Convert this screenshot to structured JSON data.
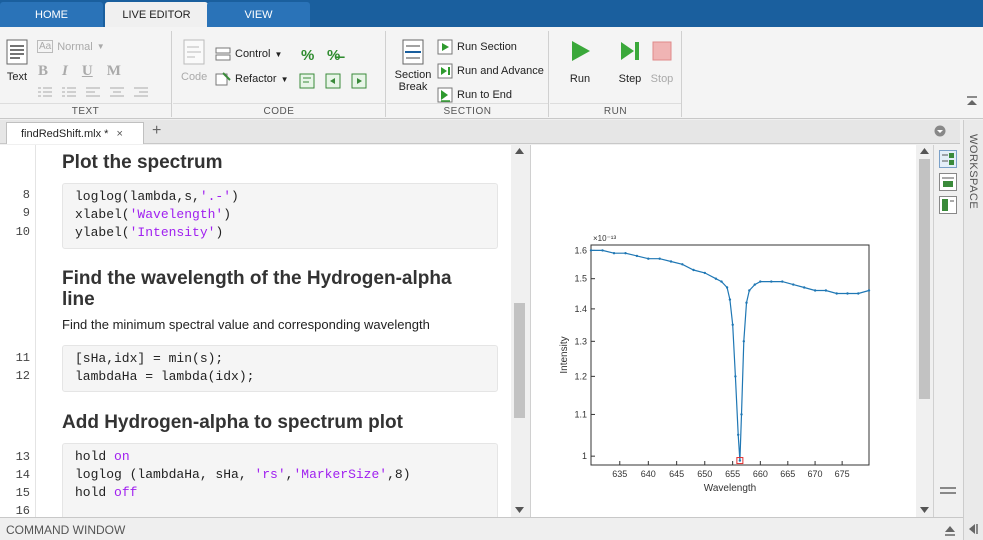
{
  "main_tabs": [
    {
      "label": "HOME"
    },
    {
      "label": "LIVE EDITOR"
    },
    {
      "label": "VIEW"
    }
  ],
  "ribbon": {
    "text_group": {
      "title": "TEXT",
      "text_button": "Text",
      "style_select": "Normal",
      "format_buttons": [
        "B",
        "I",
        "U",
        "M"
      ]
    },
    "code_group": {
      "title": "CODE",
      "code_button": "Code",
      "control_button": "Control",
      "refactor_button": "Refactor"
    },
    "section_group": {
      "title": "SECTION",
      "section_break_line1": "Section",
      "section_break_line2": "Break",
      "run_section": "Run Section",
      "run_and_advance": "Run and Advance",
      "run_to_end": "Run to End"
    },
    "run_group": {
      "title": "RUN",
      "run": "Run",
      "step": "Step",
      "stop": "Stop"
    }
  },
  "document_tab": {
    "label": "findRedShift.mlx *",
    "close": "×",
    "add": "+"
  },
  "editor": {
    "heading1": "Plot the spectrum",
    "code1": {
      "lines": [
        {
          "n": "8",
          "pre": "loglog(lambda,s,",
          "str": "'.-'",
          "post": ")"
        },
        {
          "n": "9",
          "pre": "xlabel(",
          "str": "'Wavelength'",
          "post": ")"
        },
        {
          "n": "10",
          "pre": "ylabel(",
          "str": "'Intensity'",
          "post": ")"
        }
      ]
    },
    "heading2_line1": "Find the wavelength of the Hydrogen-alpha",
    "heading2_line2": "line",
    "paragraph2": "Find the minimum spectral value and corresponding wavelength",
    "code2": {
      "lines": [
        {
          "n": "11",
          "text": "[sHa,idx] = min(s);"
        },
        {
          "n": "12",
          "text": "lambdaHa = lambda(idx);"
        }
      ]
    },
    "heading3": "Add Hydrogen-alpha to spectrum plot",
    "code3": {
      "lines": [
        {
          "n": "13",
          "pre": "hold ",
          "kw": "on"
        },
        {
          "n": "14",
          "pre": "loglog (lambdaHa, sHa, ",
          "str": "'rs'",
          "mid": ",",
          "str2": "'MarkerSize'",
          "post": ",8)"
        },
        {
          "n": "15",
          "pre": "hold ",
          "kw": "off"
        },
        {
          "n": "16",
          "pre": ""
        }
      ]
    }
  },
  "workspace_label": "WORKSPACE",
  "command_window_label": "COMMAND WINDOW",
  "chart_data": {
    "type": "line",
    "title": "",
    "xlabel": "Wavelength",
    "ylabel": "Intensity",
    "exponent_label": "×10⁻¹³",
    "xlim": [
      630,
      680
    ],
    "ylim": [
      0.98,
      1.62
    ],
    "yscale": "log",
    "xscale": "log",
    "x_ticks": [
      635,
      640,
      645,
      650,
      655,
      660,
      665,
      670,
      675
    ],
    "y_ticks": [
      1,
      1.1,
      1.2,
      1.3,
      1.4,
      1.5,
      1.6
    ],
    "series": [
      {
        "color": "#1f77b4",
        "x": [
          630,
          632,
          634,
          636,
          638,
          640,
          642,
          644,
          646,
          648,
          650,
          652,
          653,
          654,
          654.5,
          655,
          655.5,
          656,
          656.3,
          656.6,
          657,
          657.5,
          658,
          659,
          660,
          662,
          664,
          666,
          668,
          670,
          672,
          674,
          676,
          678,
          680
        ],
        "y": [
          1.6,
          1.6,
          1.59,
          1.59,
          1.58,
          1.57,
          1.57,
          1.56,
          1.55,
          1.53,
          1.52,
          1.5,
          1.49,
          1.47,
          1.43,
          1.35,
          1.2,
          1.05,
          0.99,
          1.1,
          1.3,
          1.42,
          1.46,
          1.48,
          1.49,
          1.49,
          1.49,
          1.48,
          1.47,
          1.46,
          1.46,
          1.45,
          1.45,
          1.45,
          1.46
        ]
      }
    ],
    "marker": {
      "x": 656.3,
      "y": 0.99,
      "color": "#e03030",
      "shape": "square"
    }
  }
}
